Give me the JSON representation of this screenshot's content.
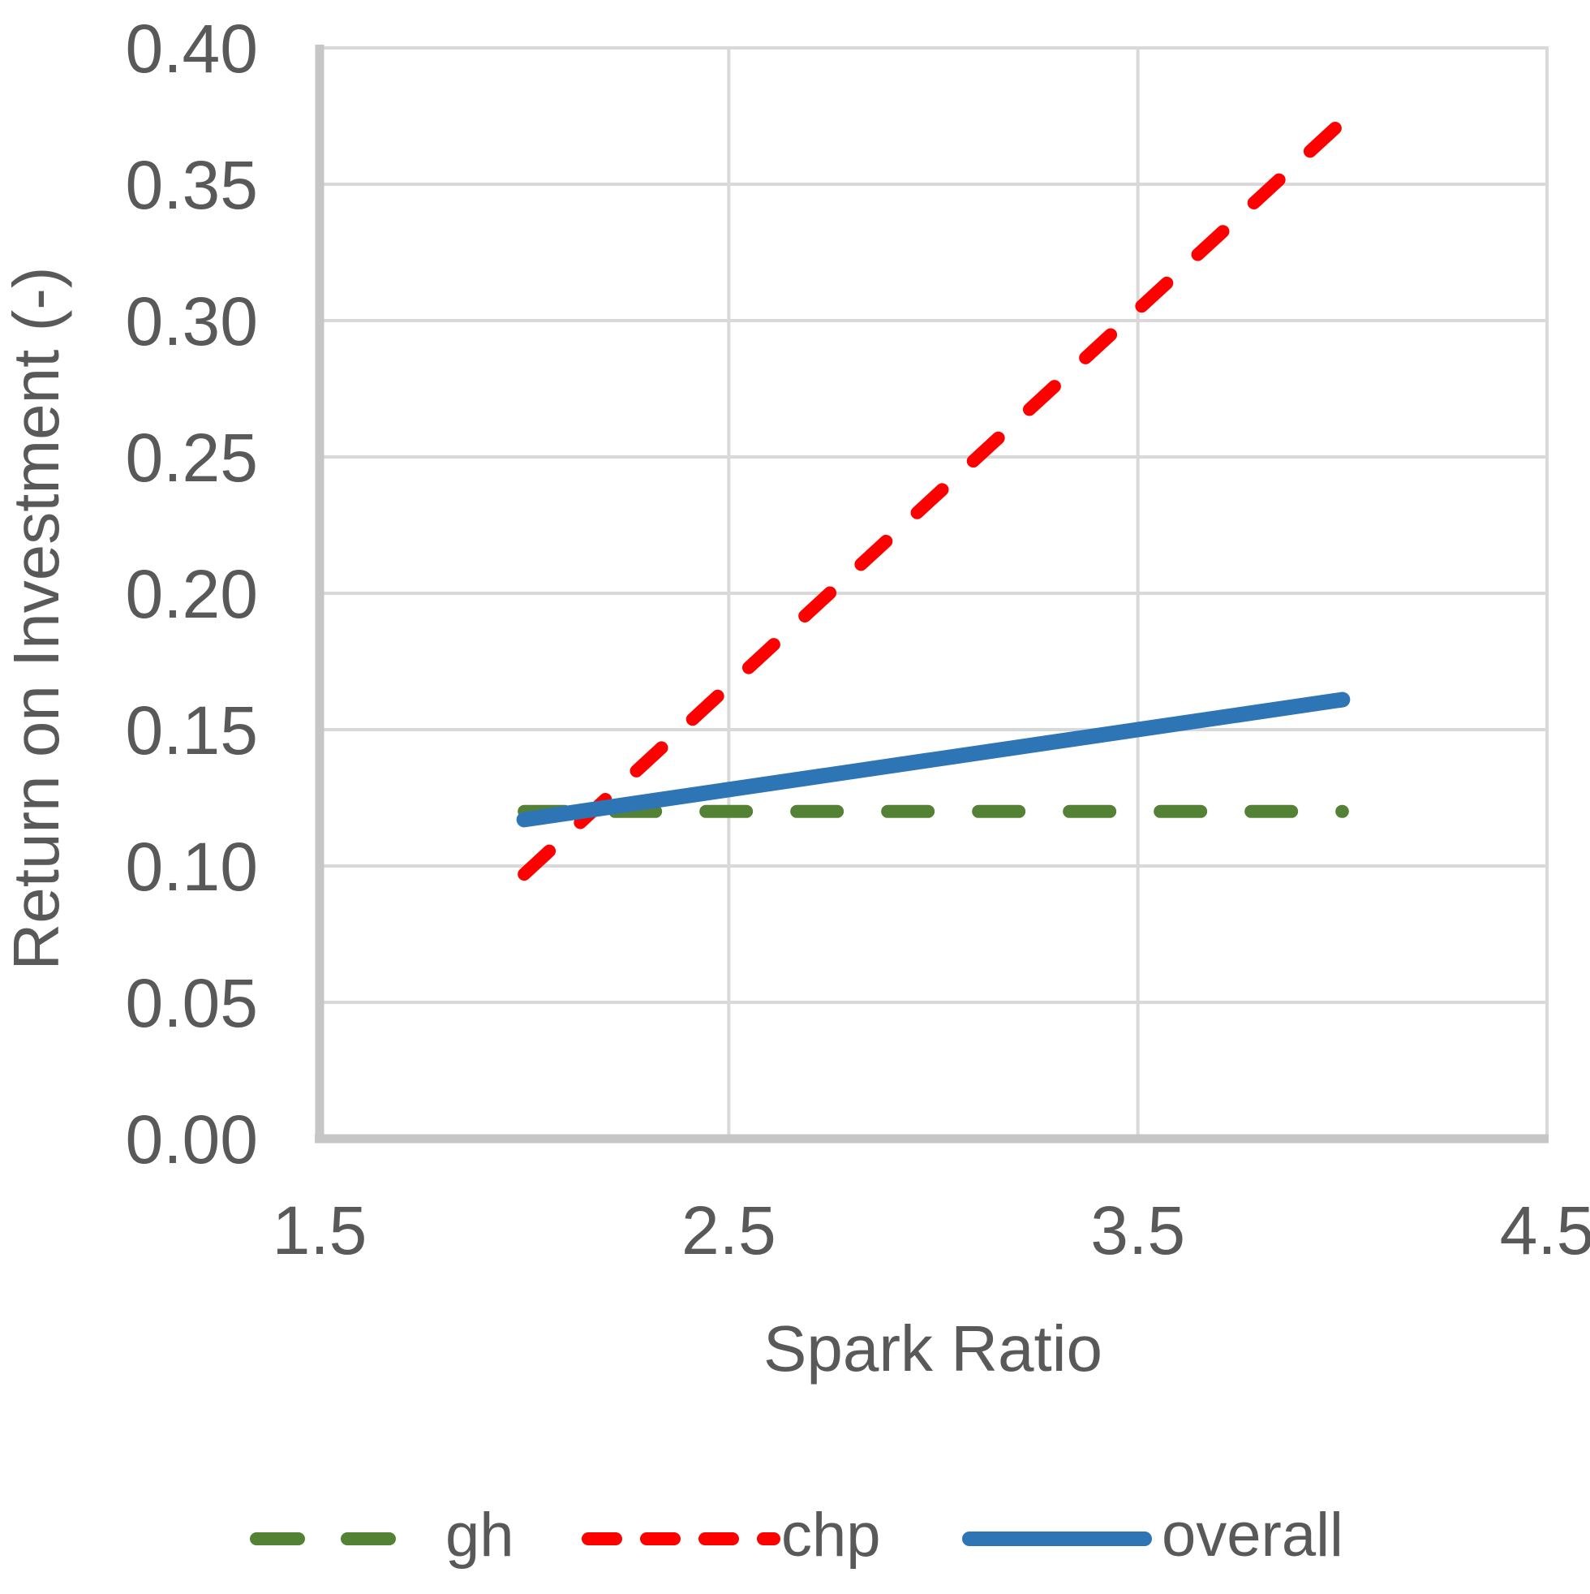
{
  "chart_data": {
    "type": "line",
    "title": "",
    "xlabel": "Spark Ratio",
    "ylabel": "Return on Investment (-)",
    "xlim": [
      1.5,
      4.5
    ],
    "ylim": [
      0.0,
      0.4
    ],
    "x_tick_labels": [
      "1.5",
      "2.5",
      "3.5",
      "4.5"
    ],
    "x_tick_values": [
      1.5,
      2.5,
      3.5,
      4.5
    ],
    "y_tick_labels": [
      "0.00",
      "0.05",
      "0.10",
      "0.15",
      "0.20",
      "0.25",
      "0.30",
      "0.35",
      "0.40"
    ],
    "y_tick_values": [
      0.0,
      0.05,
      0.1,
      0.15,
      0.2,
      0.25,
      0.3,
      0.35,
      0.4
    ],
    "grid": true,
    "legend_position": "bottom",
    "axis_text_color": "#595959",
    "gridline_color": "#D9D9D9",
    "axis_line_color": "#C6C6C6",
    "series": [
      {
        "name": "gh",
        "color": "#548235",
        "line_style": "long-dash",
        "x": [
          2.0,
          4.0
        ],
        "y": [
          0.12,
          0.12
        ]
      },
      {
        "name": "chp",
        "color": "#FF0000",
        "line_style": "short-dash",
        "x": [
          2.0,
          4.0
        ],
        "y": [
          0.097,
          0.373
        ]
      },
      {
        "name": "overall",
        "color": "#2E75B6",
        "line_style": "solid",
        "x": [
          2.0,
          4.0
        ],
        "y": [
          0.117,
          0.161
        ]
      }
    ]
  }
}
